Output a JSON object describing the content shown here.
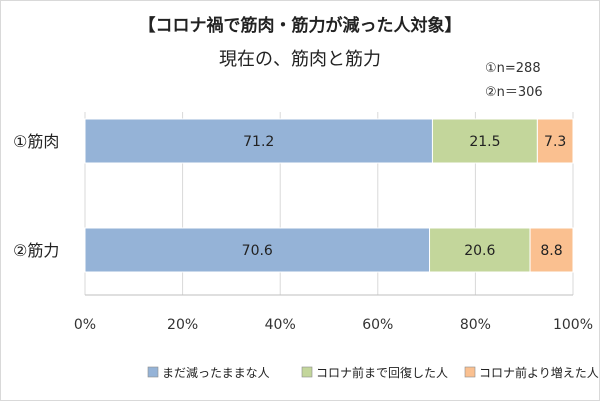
{
  "title": "【コロナ禍で筋肉・筋力が減った人対象】",
  "subtitle": "現在の、筋肉と筋力",
  "sample_sizes": [
    "①n=288",
    "②n＝306"
  ],
  "chart_data": {
    "type": "bar",
    "orientation": "horizontal",
    "stacked": true,
    "categories": [
      "①筋肉",
      "②筋力"
    ],
    "series": [
      {
        "name": "まだ減ったままな人",
        "values": [
          71.2,
          70.6
        ],
        "color": "#95b3d7"
      },
      {
        "name": "コロナ前まで回復した人",
        "values": [
          21.5,
          20.6
        ],
        "color": "#c3d69b"
      },
      {
        "name": "コロナ前より増えた人",
        "values": [
          7.3,
          8.8
        ],
        "color": "#fac090"
      }
    ],
    "data_labels": [
      [
        "71.2",
        "70.6"
      ],
      [
        "21.5",
        "20.6"
      ],
      [
        "7.3",
        "8.8"
      ]
    ],
    "x_ticks": [
      "0%",
      "20%",
      "40%",
      "60%",
      "80%",
      "100%"
    ],
    "xlim": [
      0,
      100
    ],
    "grid": "vertical",
    "legend_position": "bottom"
  }
}
